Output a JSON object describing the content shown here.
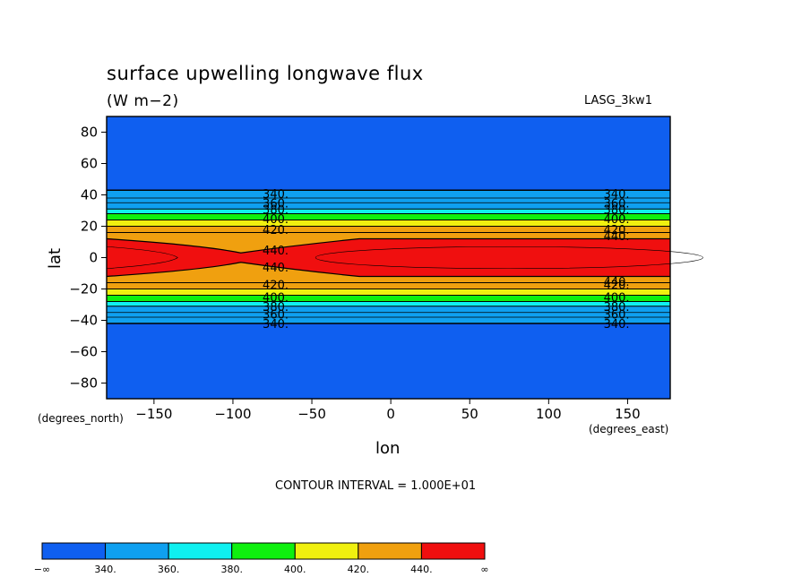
{
  "chart_data": {
    "type": "heatmap",
    "title": "surface upwelling longwave flux",
    "units": "(W m−2)",
    "dataset": "LASG_3kw1",
    "xlabel": "lon",
    "ylabel": "lat",
    "x_unit": "(degrees_east)",
    "y_unit": "(degrees_north)",
    "xlim": [
      -180,
      177
    ],
    "ylim": [
      -90,
      90
    ],
    "x_ticks": [
      "−150",
      "−100",
      "−50",
      "0",
      "50",
      "100",
      "150"
    ],
    "x_tick_values": [
      -150,
      -100,
      -50,
      0,
      50,
      100,
      150
    ],
    "y_ticks": [
      "80",
      "60",
      "40",
      "20",
      "0",
      "−20",
      "−40",
      "−60",
      "−80"
    ],
    "y_tick_values": [
      80,
      60,
      40,
      20,
      0,
      -20,
      -40,
      -60,
      -80
    ],
    "contour_interval_text": "CONTOUR INTERVAL = 1.000E+01",
    "contour_levels": [
      340,
      350,
      360,
      370,
      380,
      390,
      400,
      410,
      420,
      430,
      440
    ],
    "colorbar": {
      "bounds": [
        "−∞",
        "340.",
        "360.",
        "380.",
        "400.",
        "420.",
        "440.",
        "∞"
      ],
      "colors": [
        "#0f5ff0",
        "#0fa0f0",
        "#0ff0f0",
        "#0ff00f",
        "#f0f00f",
        "#f0a00f",
        "#f00f0f"
      ]
    },
    "bands": [
      {
        "lat_min": 43,
        "lat_max": 90,
        "value_range": "<340",
        "color": "#0f5ff0"
      },
      {
        "lat_min": 31,
        "lat_max": 43,
        "value_range": "340-360",
        "color": "#0fa0f0"
      },
      {
        "lat_min": 28,
        "lat_max": 31,
        "value_range": "360-380",
        "color": "#0ff0f0"
      },
      {
        "lat_min": 24,
        "lat_max": 28,
        "value_range": "380-400",
        "color": "#0ff00f"
      },
      {
        "lat_min": 20,
        "lat_max": 24,
        "value_range": "400-420",
        "color": "#f0f00f"
      },
      {
        "lat_min": 12,
        "lat_max": 20,
        "value_range": "420-440",
        "color": "#f0a00f"
      },
      {
        "lat_min": -12,
        "lat_max": 12,
        "value_range": ">440",
        "color": "#f00f0f"
      },
      {
        "lat_min": -20,
        "lat_max": -12,
        "value_range": "420-440",
        "color": "#f0a00f"
      },
      {
        "lat_min": -24,
        "lat_max": -20,
        "value_range": "400-420",
        "color": "#f0f00f"
      },
      {
        "lat_min": -28,
        "lat_max": -24,
        "value_range": "380-400",
        "color": "#0ff00f"
      },
      {
        "lat_min": -31,
        "lat_max": -28,
        "value_range": "360-380",
        "color": "#0ff0f0"
      },
      {
        "lat_min": -42,
        "lat_max": -31,
        "value_range": "340-360",
        "color": "#0fa0f0"
      },
      {
        "lat_min": -90,
        "lat_max": -42,
        "value_range": "<340",
        "color": "#0f5ff0"
      }
    ],
    "contour_labels": [
      "340.",
      "360.",
      "380.",
      "400.",
      "420.",
      "440."
    ],
    "grid": false
  }
}
